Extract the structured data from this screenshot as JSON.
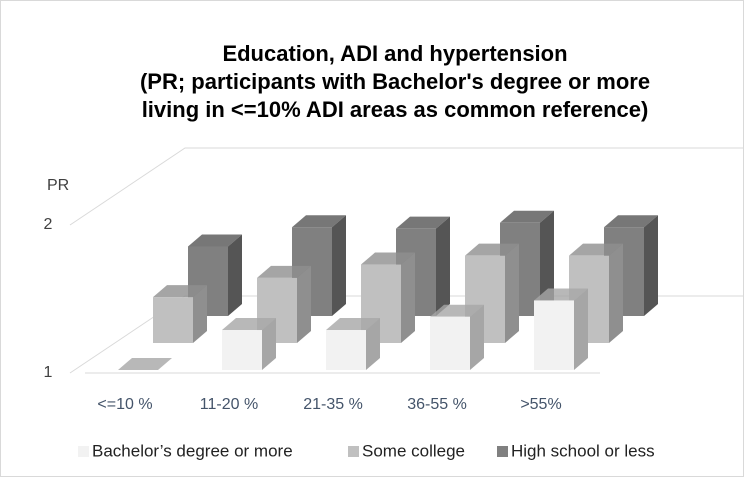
{
  "chart_data": {
    "type": "bar3d",
    "title": [
      "Education, ADI and hypertension",
      "(PR; participants with Bachelor's degree or more",
      "living in <=10% ADI areas as common reference)"
    ],
    "y_label": "PR",
    "categories": [
      "<=10 %",
      "11-20 %",
      "21-35 %",
      "36-55 %",
      ">55%"
    ],
    "series": [
      {
        "name": "Bachelor’s degree or more",
        "color": "#f2f2f2",
        "side": "#a6a6a6",
        "values": [
          1.0,
          1.27,
          1.27,
          1.36,
          1.47
        ]
      },
      {
        "name": "Some college",
        "color": "#c0c0c0",
        "side": "#8f8f8f",
        "values": [
          1.31,
          1.44,
          1.53,
          1.59,
          1.59
        ]
      },
      {
        "name": "High school or less",
        "color": "#808080",
        "side": "#555555",
        "values": [
          1.47,
          1.6,
          1.59,
          1.63,
          1.6
        ]
      }
    ],
    "ylim": [
      1,
      2.5
    ],
    "yticks": [
      1,
      2
    ],
    "grid": true
  }
}
